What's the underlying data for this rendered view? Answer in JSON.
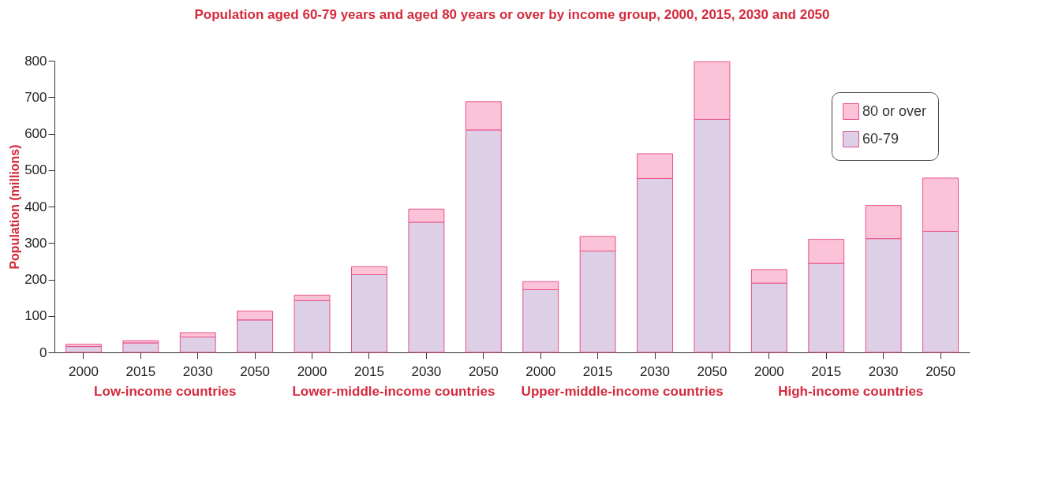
{
  "chart_data": {
    "type": "bar",
    "title": "Population aged 60-79 years and aged 80 years or over by income group, 2000, 2015, 2030 and 2050",
    "ylabel": "Population (millions)",
    "categories": [
      "2000",
      "2015",
      "2030",
      "2050",
      "2000",
      "2015",
      "2030",
      "2050",
      "2000",
      "2015",
      "2030",
      "2050",
      "2000",
      "2015",
      "2030",
      "2050"
    ],
    "series": [
      {
        "name": "60-79",
        "color": "#dccfe6",
        "values": [
          16,
          26,
          42,
          89,
          142,
          213,
          357,
          610,
          172,
          278,
          477,
          639,
          190,
          244,
          312,
          332
        ]
      },
      {
        "name": "80 or over",
        "color": "#fcc3d8",
        "values": [
          6,
          6,
          12,
          24,
          15,
          22,
          36,
          78,
          22,
          40,
          68,
          158,
          37,
          66,
          91,
          146
        ]
      }
    ],
    "stacked": true,
    "ylim": [
      0,
      800
    ],
    "yticks": [
      0,
      100,
      200,
      300,
      400,
      500,
      600,
      700,
      800
    ],
    "grid": false,
    "legend": "top right",
    "annotations": [
      "Low-income countries",
      "Lower-middle-income countries",
      "Upper-middle-income countries",
      "High-income countries"
    ]
  }
}
